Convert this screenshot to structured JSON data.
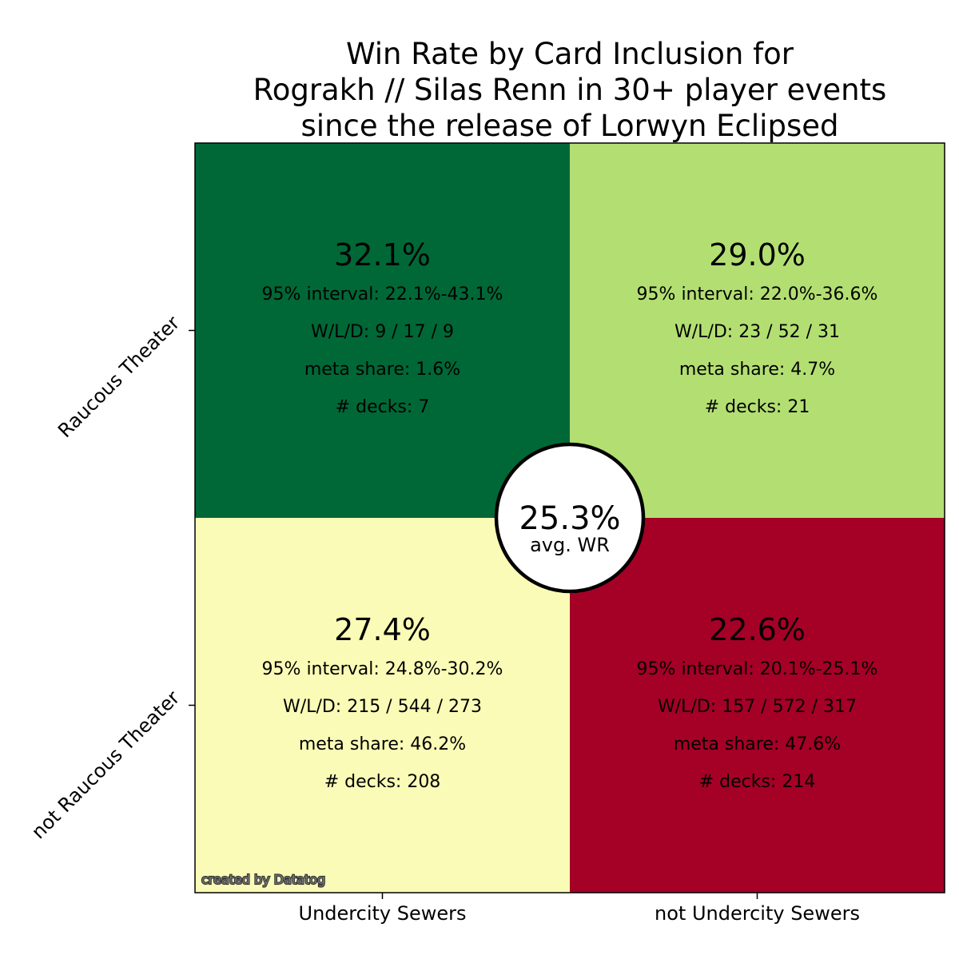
{
  "chart_data": {
    "type": "heatmap",
    "title": [
      "Win Rate by Card Inclusion for",
      "Rograkh // Silas Renn in 30+ player events",
      "since the release of Lorwyn Eclipsed"
    ],
    "x_categories": [
      "Undercity Sewers",
      "not Undercity Sewers"
    ],
    "y_categories": [
      "Raucous Theater",
      "not Raucous Theater"
    ],
    "cells": [
      {
        "row": 0,
        "col": 0,
        "win_rate": "32.1%",
        "interval": "95% interval: 22.1%-43.1%",
        "wld": "W/L/D: 9 / 17 / 9",
        "meta_share": "meta share: 1.6%",
        "decks": "# decks: 7",
        "color": "#006837"
      },
      {
        "row": 0,
        "col": 1,
        "win_rate": "29.0%",
        "interval": "95% interval: 22.0%-36.6%",
        "wld": "W/L/D: 23 / 52 / 31",
        "meta_share": "meta share: 4.7%",
        "decks": "# decks: 21",
        "color": "#b3df72"
      },
      {
        "row": 1,
        "col": 0,
        "win_rate": "27.4%",
        "interval": "95% interval: 24.8%-30.2%",
        "wld": "W/L/D: 215 / 544 / 273",
        "meta_share": "meta share: 46.2%",
        "decks": "# decks: 208",
        "color": "#fafbb6"
      },
      {
        "row": 1,
        "col": 1,
        "win_rate": "22.6%",
        "interval": "95% interval: 20.1%-25.1%",
        "wld": "W/L/D: 157 / 572 / 317",
        "meta_share": "meta share: 47.6%",
        "decks": "# decks: 214",
        "color": "#a50026"
      }
    ],
    "average": {
      "value": "25.3%",
      "label": "avg. WR"
    },
    "watermark": "created by Datatog"
  }
}
